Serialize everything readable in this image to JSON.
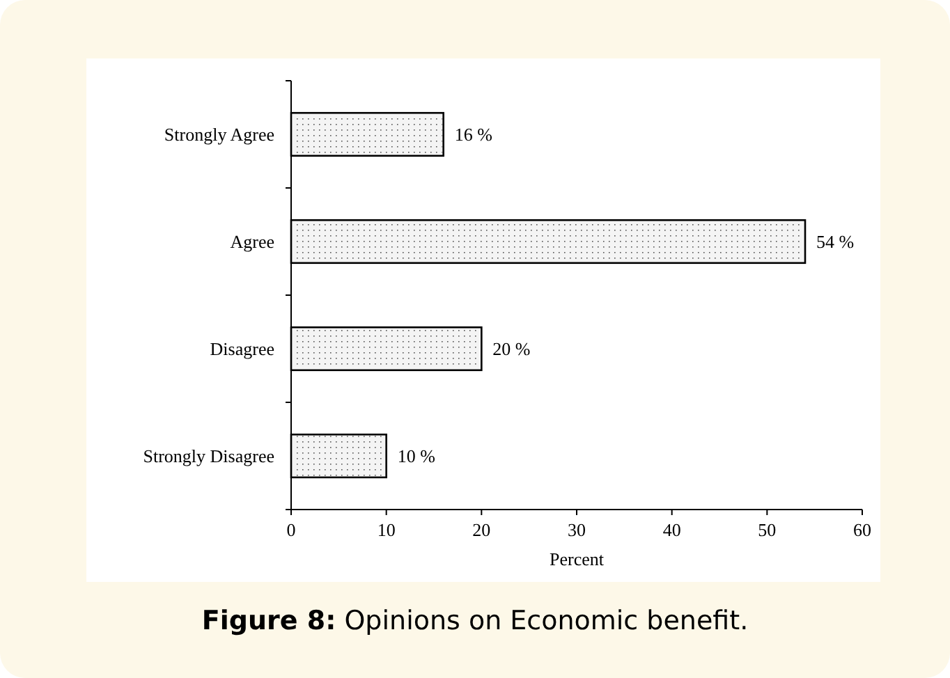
{
  "chart_data": {
    "type": "bar",
    "orientation": "horizontal",
    "title": "Figure 8: Opinions on Economic benefit.",
    "xlabel": "Percent",
    "categories": [
      "Strongly Agree",
      "Agree",
      "Disagree",
      "Strongly Disagree"
    ],
    "values": [
      16,
      54,
      20,
      10
    ],
    "value_labels": [
      "16 %",
      "54 %",
      "20 %",
      "10 %"
    ],
    "color": "#f4f4f4",
    "xlim": [
      0,
      60
    ],
    "xticks": [
      0,
      10,
      20,
      30,
      40,
      50,
      60
    ],
    "grid": false
  }
}
